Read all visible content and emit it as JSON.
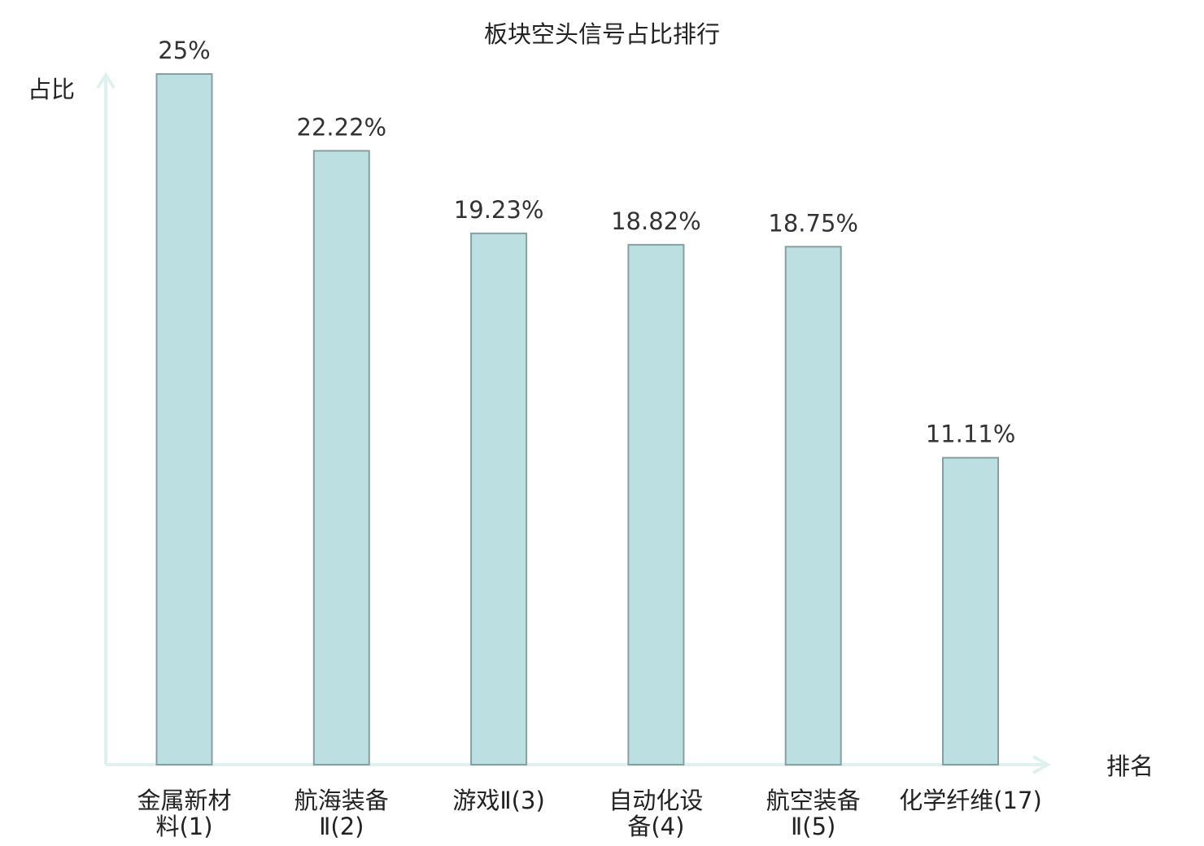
{
  "chart_data": {
    "type": "bar",
    "title": "板块空头信号占比排行",
    "ylabel": "占比",
    "xlabel": "排名",
    "categories": [
      {
        "name": "金属新材料",
        "rank": "(1)",
        "line1": "金属新材",
        "line2": "料(1)"
      },
      {
        "name": "航海装备Ⅱ",
        "rank": "(2)",
        "line1": "航海装备",
        "line2": "Ⅱ(2)"
      },
      {
        "name": "游戏Ⅱ",
        "rank": "(3)",
        "line1": "游戏Ⅱ(3)",
        "line2": ""
      },
      {
        "name": "自动化设备",
        "rank": "(4)",
        "line1": "自动化设",
        "line2": "备(4)"
      },
      {
        "name": "航空装备Ⅱ",
        "rank": "(5)",
        "line1": "航空装备",
        "line2": "Ⅱ(5)"
      },
      {
        "name": "化学纤维",
        "rank": "(17)",
        "line1": "化学纤维(17)",
        "line2": ""
      }
    ],
    "values": [
      25,
      22.22,
      19.23,
      18.82,
      18.75,
      11.11
    ],
    "value_labels": [
      "25%",
      "22.22%",
      "19.23%",
      "18.82%",
      "18.75%",
      "11.11%"
    ],
    "highlight_index": 5,
    "ylim": [
      0,
      25
    ],
    "grid": false,
    "legend": "none",
    "colors": {
      "bar_fill": "#bce0e2",
      "bar_stroke": "#889fa1",
      "axis": "#dff1ee",
      "text": "#222222",
      "highlight_text": "#e60000"
    }
  }
}
